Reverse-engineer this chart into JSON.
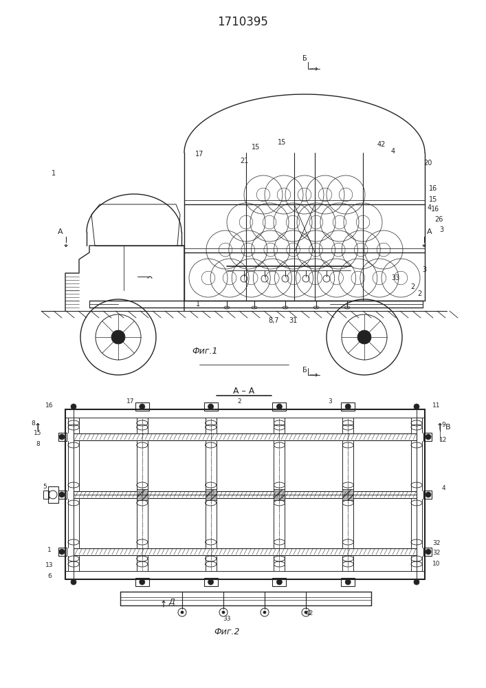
{
  "title": "1710395",
  "fig1_label": "Фиг.1",
  "fig2_label": "Фиг.2",
  "section_label": "A – A",
  "line_color": "#222222",
  "bg_color": "#ffffff"
}
